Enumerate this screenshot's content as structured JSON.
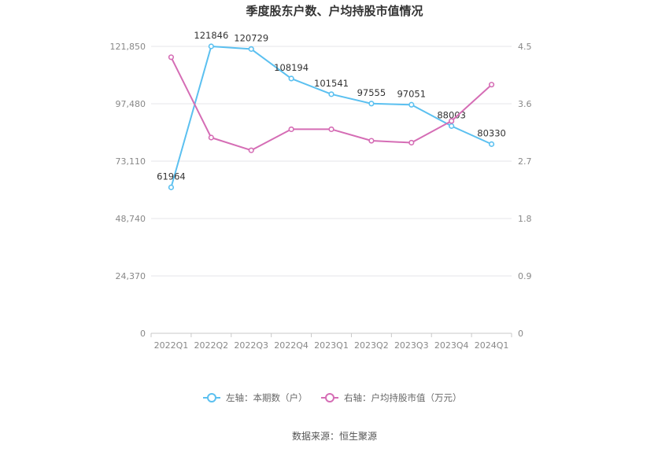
{
  "chart_data": {
    "type": "line",
    "title": "季度股东户数、户均持股市值情况",
    "categories": [
      "2022Q1",
      "2022Q2",
      "2022Q3",
      "2022Q4",
      "2023Q1",
      "2023Q2",
      "2023Q3",
      "2023Q4",
      "2024Q1"
    ],
    "y_left_ticks": [
      "0",
      "24,370",
      "48,740",
      "73,110",
      "97,480",
      "121,850"
    ],
    "y_right_ticks": [
      "0",
      "0.9",
      "1.8",
      "2.7",
      "3.6",
      "4.5"
    ],
    "y_left_range": [
      0,
      121850
    ],
    "y_right_range": [
      0,
      4.5
    ],
    "grid": true,
    "legend_position": "bottom",
    "series": [
      {
        "name": "左轴：本期数（户）",
        "axis": "left",
        "color": "#5bc0f0",
        "values": [
          61964,
          121846,
          120729,
          108194,
          101541,
          97555,
          97051,
          88003,
          80330
        ],
        "labels": [
          "61964",
          "121846",
          "120729",
          "108194",
          "101541",
          "97555",
          "97051",
          "88003",
          "80330"
        ]
      },
      {
        "name": "右轴：户均持股市值（万元）",
        "axis": "right",
        "color": "#d56db5",
        "values": [
          4.33,
          3.07,
          2.87,
          3.2,
          3.2,
          3.02,
          2.99,
          3.33,
          3.9
        ]
      }
    ]
  },
  "footer": {
    "source": "数据来源：恒生聚源"
  }
}
